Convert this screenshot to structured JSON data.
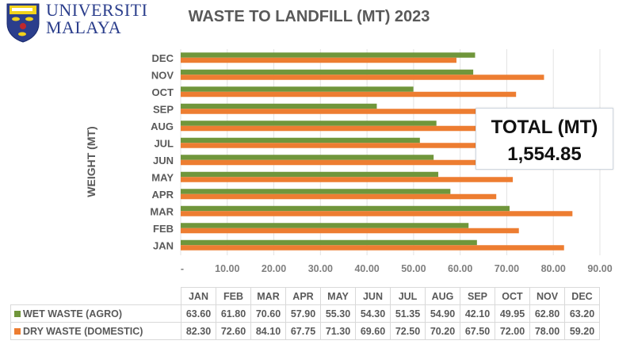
{
  "logo": {
    "name": "UNIVERSITI MALAYA",
    "line1": "UNIVERSITI",
    "line2": "MALAYA",
    "icon": "crest-shield-icon"
  },
  "total": {
    "label": "TOTAL (MT)",
    "value": "1,554.85"
  },
  "chart_data": {
    "type": "bar",
    "orientation": "horizontal",
    "title": "WASTE TO LANDFILL (MT) 2023",
    "xlabel": "",
    "ylabel": "WEIGHT (MT)",
    "categories": [
      "JAN",
      "FEB",
      "MAR",
      "APR",
      "MAY",
      "JUN",
      "JUL",
      "AUG",
      "SEP",
      "OCT",
      "NOV",
      "DEC"
    ],
    "series": [
      {
        "name": "WET WASTE (AGRO)",
        "color": "#70963b",
        "values": [
          63.6,
          61.8,
          70.6,
          57.9,
          55.3,
          54.3,
          51.35,
          54.9,
          42.1,
          49.95,
          62.8,
          63.2
        ],
        "labels": [
          "63.60",
          "61.80",
          "70.60",
          "57.90",
          "55.30",
          "54.30",
          "51.35",
          "54.90",
          "42.10",
          "49.95",
          "62.80",
          "63.20"
        ]
      },
      {
        "name": "DRY WASTE (DOMESTIC)",
        "color": "#ed7d31",
        "values": [
          82.3,
          72.6,
          84.1,
          67.75,
          71.3,
          69.6,
          72.5,
          70.2,
          67.5,
          72.0,
          78.0,
          59.2
        ],
        "labels": [
          "82.30",
          "72.60",
          "84.10",
          "67.75",
          "71.30",
          "69.60",
          "72.50",
          "70.20",
          "67.50",
          "72.00",
          "78.00",
          "59.20"
        ]
      }
    ],
    "xlim": [
      0,
      90
    ],
    "xticks": [
      0,
      10,
      20,
      30,
      40,
      50,
      60,
      70,
      80,
      90
    ],
    "xtick_labels": [
      "-",
      "10.00",
      "20.00",
      "30.00",
      "40.00",
      "50.00",
      "60.00",
      "70.00",
      "80.00",
      "90.00"
    ],
    "grid": true,
    "category_order": "JAN at bottom, DEC at top",
    "legend": "data table below chart"
  }
}
